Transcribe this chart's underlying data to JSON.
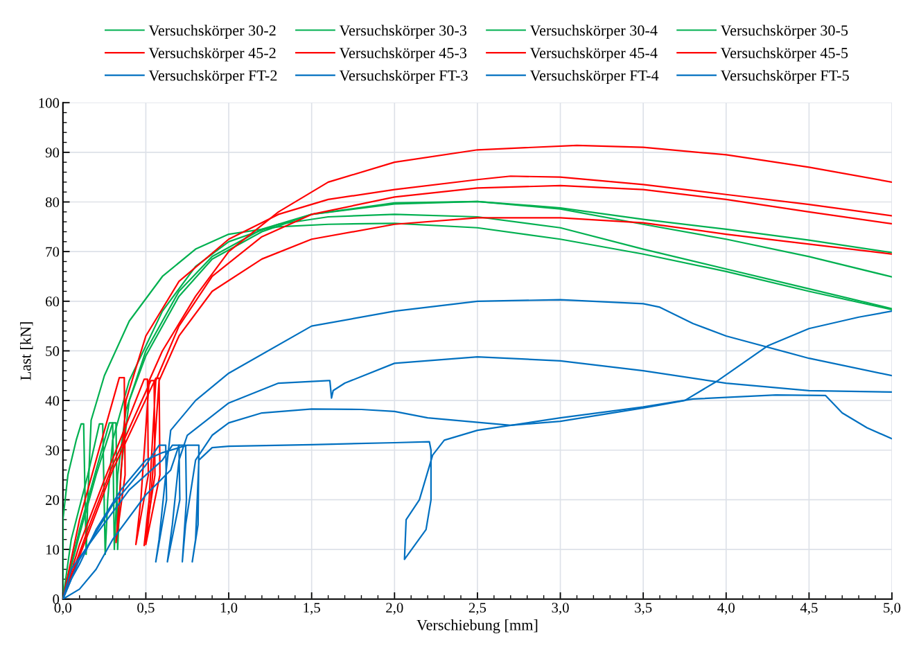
{
  "chart_data": {
    "type": "line",
    "xlabel": "Verschiebung [mm]",
    "ylabel": "Last [kN]",
    "xlim": [
      0,
      5
    ],
    "ylim": [
      0,
      100
    ],
    "xticks": [
      {
        "value": 0,
        "label": "0,0"
      },
      {
        "value": 0.5,
        "label": "0,5"
      },
      {
        "value": 1,
        "label": "1,0"
      },
      {
        "value": 1.5,
        "label": "1,5"
      },
      {
        "value": 2,
        "label": "2,0"
      },
      {
        "value": 2.5,
        "label": "2,5"
      },
      {
        "value": 3,
        "label": "3,0"
      },
      {
        "value": 3.5,
        "label": "3,5"
      },
      {
        "value": 4,
        "label": "4,0"
      },
      {
        "value": 4.5,
        "label": "4,5"
      },
      {
        "value": 5,
        "label": "5,0"
      }
    ],
    "yticks": [
      0,
      10,
      20,
      30,
      40,
      50,
      60,
      70,
      80,
      90,
      100
    ],
    "grid": true,
    "legend": "top",
    "marker": "none",
    "line_style": "solid",
    "series": [
      {
        "name": "Versuchskörper 30-2",
        "color": "#00b050",
        "x": [
          0,
          0,
          0.03,
          0.08,
          0.11,
          0.125,
          0.14,
          0.15,
          0.17,
          0.25,
          0.4,
          0.6,
          0.8,
          1.0,
          1.3,
          1.6,
          2.0,
          2.5,
          3.0,
          3.5,
          4.0,
          4.5,
          5.0
        ],
        "values": [
          0,
          16,
          25,
          32,
          35.3,
          35.3,
          9,
          20,
          36,
          45,
          56,
          65,
          70.5,
          73.5,
          75,
          75.5,
          75.7,
          74.8,
          72.5,
          69.5,
          66,
          62,
          58.3
        ]
      },
      {
        "name": "Versuchskörper 30-3",
        "color": "#00b050",
        "x": [
          0,
          0.05,
          0.15,
          0.22,
          0.24,
          0.255,
          0.27,
          0.3,
          0.4,
          0.6,
          0.8,
          1.0,
          1.3,
          1.6,
          2.0,
          2.5,
          3.0,
          3.5,
          4.0,
          4.5,
          5.0
        ],
        "values": [
          0,
          12,
          25,
          35.3,
          35.3,
          9,
          20,
          32,
          44,
          58,
          67,
          72,
          75.5,
          77,
          77.5,
          77,
          74.8,
          70.5,
          66.5,
          62.5,
          58.5
        ]
      },
      {
        "name": "Versuchskörper 30-4",
        "color": "#00b050",
        "x": [
          0,
          0.1,
          0.2,
          0.28,
          0.3,
          0.31,
          0.33,
          0.38,
          0.5,
          0.7,
          0.9,
          1.2,
          1.5,
          2.0,
          2.5,
          3.0,
          3.5,
          4.0,
          4.5,
          5.0
        ],
        "values": [
          0,
          14,
          26,
          35.5,
          35.5,
          10,
          25,
          38,
          50,
          62,
          69,
          74.5,
          77.5,
          79.8,
          80.1,
          78.8,
          76.5,
          74.5,
          72.3,
          69.8
        ]
      },
      {
        "name": "Versuchskörper 30-5",
        "color": "#00b050",
        "x": [
          0,
          0.1,
          0.2,
          0.3,
          0.32,
          0.33,
          0.35,
          0.4,
          0.5,
          0.7,
          0.9,
          1.2,
          1.5,
          2.0,
          2.5,
          3.0,
          3.5,
          4.0,
          4.5,
          5.0
        ],
        "values": [
          0,
          13,
          25,
          35.5,
          35.5,
          10,
          26,
          40,
          49,
          61,
          68.5,
          74,
          77.5,
          79.6,
          80.1,
          78.6,
          75.5,
          72.5,
          69,
          64.9
        ]
      },
      {
        "name": "Versuchskörper 45-2",
        "color": "#ff0000",
        "x": [
          0,
          0.1,
          0.2,
          0.34,
          0.37,
          0.375,
          0.32,
          0.34,
          0.38,
          0.5,
          0.7,
          1.0,
          1.3,
          1.6,
          2.0,
          2.5,
          2.7,
          3.0,
          3.5,
          4.0,
          4.5,
          5.0
        ],
        "values": [
          0,
          16,
          28,
          44.6,
          44.6,
          25,
          11.4,
          20,
          40,
          53,
          64,
          72.5,
          77.5,
          80.5,
          82.5,
          84.5,
          85.2,
          85,
          83.5,
          81.5,
          79.5,
          77.2
        ]
      },
      {
        "name": "Versuchskörper 45-3",
        "color": "#ff0000",
        "x": [
          0,
          0.1,
          0.25,
          0.49,
          0.51,
          0.515,
          0.44,
          0.47,
          0.52,
          0.6,
          0.8,
          1.0,
          1.3,
          1.6,
          2.0,
          2.5,
          3.1,
          3.5,
          4.0,
          4.5,
          5.0
        ],
        "values": [
          0,
          11,
          24,
          44.3,
          44.3,
          25,
          11,
          20,
          44,
          50,
          61,
          70,
          78,
          84,
          88,
          90.5,
          91.4,
          91,
          89.5,
          87,
          84
        ]
      },
      {
        "name": "Versuchskörper 45-4",
        "color": "#ff0000",
        "x": [
          0,
          0.15,
          0.3,
          0.53,
          0.55,
          0.555,
          0.49,
          0.52,
          0.56,
          0.7,
          0.9,
          1.2,
          1.5,
          2.0,
          2.5,
          3.0,
          3.5,
          4.0,
          4.5,
          5.0
        ],
        "values": [
          0,
          14,
          27,
          44,
          44,
          25,
          10.8,
          20,
          44,
          55,
          65,
          73,
          77.5,
          81,
          82.8,
          83.3,
          82.5,
          80.5,
          78,
          75.6
        ]
      },
      {
        "name": "Versuchskörper 45-5",
        "color": "#ff0000",
        "x": [
          0,
          0.15,
          0.3,
          0.56,
          0.58,
          0.585,
          0.5,
          0.53,
          0.58,
          0.7,
          0.9,
          1.2,
          1.5,
          2.0,
          2.5,
          3.0,
          3.5,
          4.0,
          4.5,
          5.0
        ],
        "values": [
          0,
          13,
          26,
          44.5,
          44.5,
          25,
          11,
          20,
          44,
          53,
          62,
          68.5,
          72.5,
          75.5,
          76.8,
          76.8,
          75.8,
          73.5,
          71.5,
          69.5
        ]
      },
      {
        "name": "Versuchskörper FT-2",
        "color": "#0070c0",
        "x": [
          0,
          0.1,
          0.3,
          0.5,
          0.58,
          0.62,
          0.625,
          0.56,
          0.58,
          0.62,
          0.65,
          0.8,
          1.0,
          1.5,
          2.0,
          2.5,
          3.0,
          3.5,
          3.6,
          3.8,
          4.0,
          4.5,
          5.0
        ],
        "values": [
          0,
          8,
          19,
          27,
          31,
          31,
          20,
          7.5,
          12,
          25,
          34,
          40,
          45.5,
          55,
          58,
          60,
          60.3,
          59.5,
          58.8,
          55.5,
          53,
          48.5,
          45
        ]
      },
      {
        "name": "Versuchskörper FT-3",
        "color": "#0070c0",
        "x": [
          0,
          0.05,
          0.2,
          0.4,
          0.6,
          0.66,
          0.7,
          0.705,
          0.63,
          0.66,
          0.7,
          0.75,
          1.0,
          1.3,
          1.6,
          1.61,
          1.62,
          1.63,
          1.7,
          2.0,
          2.5,
          3.0,
          3.5,
          4.0,
          4.5,
          5.0
        ],
        "values": [
          0,
          6,
          13,
          22,
          28,
          31,
          31,
          20,
          7.5,
          15,
          28,
          33,
          39.5,
          43.5,
          44,
          44,
          40.5,
          42,
          43.5,
          47.5,
          48.8,
          48,
          46,
          43.5,
          42,
          41.7
        ]
      },
      {
        "name": "Versuchskörper FT-4",
        "color": "#0070c0",
        "x": [
          0,
          0.1,
          0.2,
          0.3,
          0.5,
          0.65,
          0.7,
          0.74,
          0.745,
          0.72,
          0.74,
          0.8,
          0.9,
          1.0,
          1.2,
          1.5,
          1.8,
          2.0,
          2.2,
          2.7,
          3.0,
          3.5,
          3.75,
          3.95,
          4.25,
          4.5,
          4.8,
          5.0
        ],
        "values": [
          0,
          2,
          6,
          12,
          21,
          26,
          31,
          31,
          20,
          7.5,
          15,
          28,
          33,
          35.5,
          37.5,
          38.3,
          38.2,
          37.8,
          36.5,
          35,
          35.8,
          38.5,
          40,
          44,
          51,
          54.5,
          56.8,
          58
        ]
      },
      {
        "name": "Versuchskörper FT-5",
        "color": "#0070c0",
        "x": [
          0,
          0.05,
          0.1,
          0.2,
          0.35,
          0.5,
          0.6,
          0.75,
          0.82,
          0.815,
          0.78,
          0.8,
          0.82,
          0.9,
          1.0,
          1.5,
          2.0,
          2.21,
          2.22,
          2.22,
          2.19,
          2.06,
          2.07,
          2.15,
          2.23,
          2.3,
          2.5,
          3.0,
          3.5,
          3.8,
          4.3,
          4.6,
          4.7,
          4.85,
          5.0
        ],
        "values": [
          0,
          4,
          7,
          14,
          22,
          28,
          29.5,
          31,
          31,
          15,
          7.5,
          12,
          28,
          30.5,
          30.8,
          31.1,
          31.5,
          31.7,
          30,
          20,
          14,
          8,
          16,
          20,
          29,
          32,
          34,
          36.5,
          38.7,
          40.3,
          41.1,
          41,
          37.5,
          34.5,
          32.3
        ]
      }
    ]
  }
}
